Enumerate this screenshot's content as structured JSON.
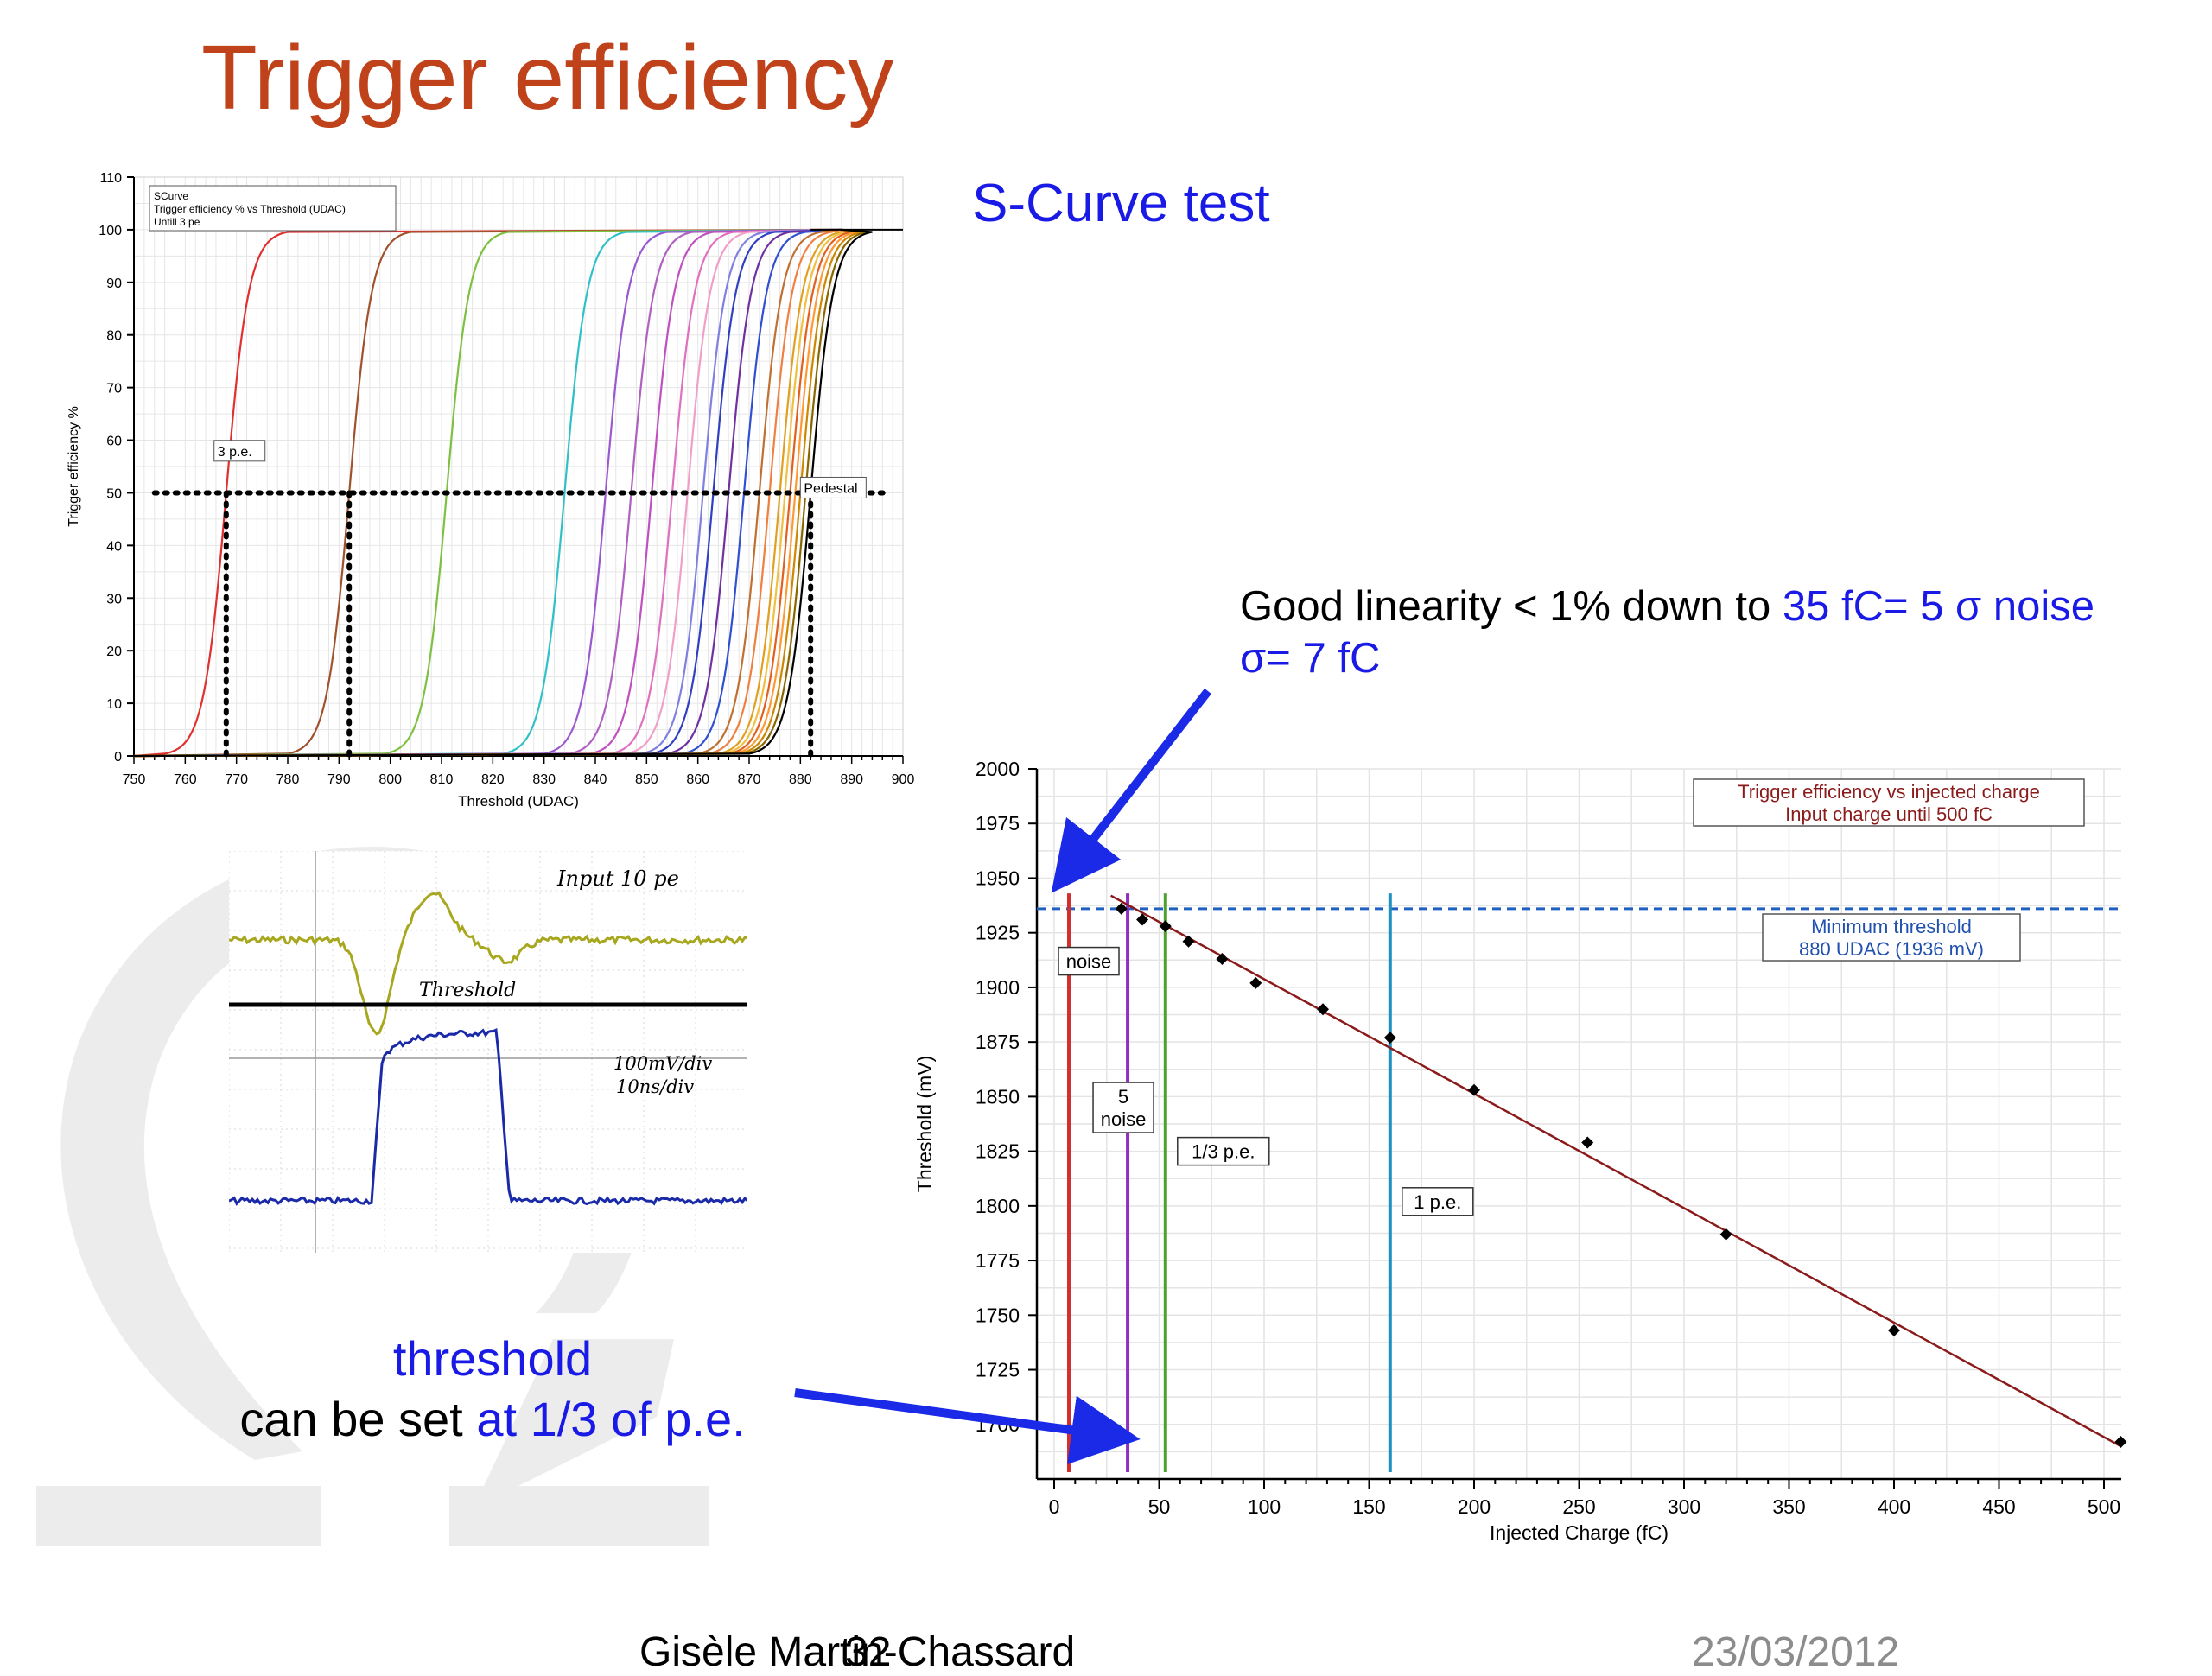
{
  "slide": {
    "title": "Trigger efficiency",
    "subtitle": "S-Curve test",
    "linearity_text_a": "Good linearity < 1% down to ",
    "linearity_text_b": "35 fC= 5 σ noise",
    "linearity_text_c": "σ= 7 fC",
    "threshold_word": "threshold",
    "threshold_line_a": "can be set ",
    "threshold_line_b": "at 1/3 of p.e.",
    "footer_author": "Gisèle Martin-Chassard",
    "footer_page": "32",
    "footer_date": "23/03/2012"
  },
  "scope": {
    "label_input": "Input 10 pe",
    "label_threshold": "Threshold",
    "label_scale1": "100mV/div",
    "label_scale2": "10ns/div",
    "colors": {
      "input": "#a8a820",
      "output": "#1a2aa8"
    }
  },
  "chart_data": [
    {
      "type": "line",
      "legend_lines": [
        "SCurve",
        "Trigger efficiency % vs Threshold (UDAC)",
        "Untill 3 pe"
      ],
      "xlabel": "Threshold (UDAC)",
      "ylabel": "Trigger efficiency %",
      "xlim": [
        750,
        900
      ],
      "ylim": [
        0,
        110
      ],
      "xticks": [
        750,
        760,
        770,
        780,
        790,
        800,
        810,
        820,
        830,
        840,
        850,
        860,
        870,
        880,
        890,
        900
      ],
      "yticks": [
        0,
        10,
        20,
        30,
        40,
        50,
        60,
        70,
        80,
        90,
        100,
        110
      ],
      "grid": true,
      "annotations": [
        {
          "text": "3 p.e.",
          "x": 769,
          "y": 57
        },
        {
          "text": "Pedestal",
          "x": 880,
          "y": 50
        }
      ],
      "reference_lines": {
        "y50": 50,
        "x_3pe": 768,
        "x_mid": 792,
        "x_pedestal": 882
      },
      "series_50pct_thresholds": [
        768,
        792,
        811,
        834,
        842,
        847,
        851,
        855,
        858,
        861,
        863,
        866,
        869,
        872,
        874,
        876,
        877,
        878,
        879,
        880,
        881,
        882
      ],
      "series_colors": [
        "#e03030",
        "#a0522d",
        "#7ec040",
        "#30c0c8",
        "#9b59d0",
        "#b060c0",
        "#c050c0",
        "#e070c0",
        "#f0a0c8",
        "#8080e0",
        "#3040c0",
        "#7030a0",
        "#3050d0",
        "#c07030",
        "#f08040",
        "#e0a020",
        "#f0c040",
        "#e06020",
        "#ff9933",
        "#cc8800",
        "#886600",
        "#000000"
      ]
    },
    {
      "type": "line",
      "legend_lines": [
        "Trigger efficiency vs injected charge",
        "Input charge until 500 fC"
      ],
      "xlabel": "Injected Charge (fC)",
      "ylabel": "Threshold (mV)",
      "xlim": [
        0,
        500
      ],
      "ylim": [
        1675,
        2000
      ],
      "xticks": [
        0,
        50,
        100,
        150,
        200,
        250,
        300,
        350,
        400,
        450,
        500
      ],
      "yticks": [
        1700,
        1725,
        1750,
        1775,
        1800,
        1825,
        1850,
        1875,
        1900,
        1925,
        1950,
        1975,
        2000
      ],
      "grid": true,
      "points_x": [
        32,
        42,
        53,
        64,
        80,
        96,
        128,
        160,
        200,
        254,
        320,
        400,
        508
      ],
      "points_y": [
        1936,
        1931,
        1928,
        1921,
        1913,
        1902,
        1890,
        1877,
        1853,
        1829,
        1787,
        1743,
        1692
      ],
      "fit_line": {
        "x": [
          27,
          508
        ],
        "y": [
          1942,
          1690
        ]
      },
      "min_threshold_y": 1936,
      "min_threshold_label": [
        "Minimum threshold",
        "880 UDAC (1936 mV)"
      ],
      "vertical_markers": [
        {
          "x": 7,
          "label": [
            "noise"
          ],
          "color": "#d03030"
        },
        {
          "x": 35,
          "label": [
            "5",
            "noise"
          ],
          "color": "#9030c0"
        },
        {
          "x": 53,
          "label": [
            "1/3 p.e."
          ],
          "color": "#50a030"
        },
        {
          "x": 160,
          "label": [
            "1 p.e."
          ],
          "color": "#2090c0"
        }
      ]
    }
  ]
}
